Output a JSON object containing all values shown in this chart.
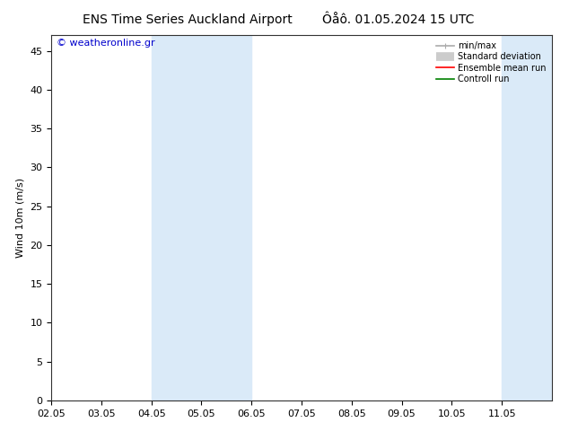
{
  "title_left": "ENS Time Series Auckland Airport",
  "title_right": "Ôåô. 01.05.2024 15 UTC",
  "ylabel": "Wind 10m (m/s)",
  "watermark": "© weatheronline.gr",
  "xlim": [
    0,
    10
  ],
  "ylim": [
    0,
    47
  ],
  "yticks": [
    0,
    5,
    10,
    15,
    20,
    25,
    30,
    35,
    40,
    45
  ],
  "xtick_labels": [
    "02.05",
    "03.05",
    "04.05",
    "05.05",
    "06.05",
    "07.05",
    "08.05",
    "09.05",
    "10.05",
    "11.05"
  ],
  "xtick_positions": [
    0,
    1,
    2,
    3,
    4,
    5,
    6,
    7,
    8,
    9
  ],
  "shade_bands": [
    {
      "xmin": 2.0,
      "xmax": 4.0,
      "color": "#daeaf8"
    },
    {
      "xmin": 9.0,
      "xmax": 10.0,
      "color": "#daeaf8"
    }
  ],
  "legend_items": [
    {
      "label": "min/max",
      "color": "#aaaaaa",
      "lw": 1.2,
      "style": "minmax"
    },
    {
      "label": "Standard deviation",
      "color": "#cccccc",
      "lw": 7,
      "style": "band"
    },
    {
      "label": "Ensemble mean run",
      "color": "#ff0000",
      "lw": 1.2,
      "style": "line"
    },
    {
      "label": "Controll run",
      "color": "#008000",
      "lw": 1.2,
      "style": "line"
    }
  ],
  "bg_color": "#ffffff",
  "plot_bg_color": "#ffffff",
  "border_color": "#888888",
  "title_fontsize": 10,
  "axis_fontsize": 8,
  "tick_fontsize": 8,
  "watermark_color": "#0000cc",
  "watermark_fontsize": 8
}
